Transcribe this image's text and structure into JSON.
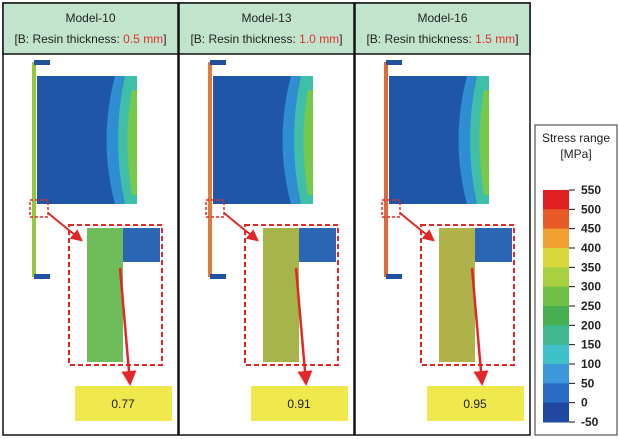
{
  "panels": [
    {
      "title": "Model-10",
      "prefix": "[B: Resin thickness: ",
      "thickness": "0.5 mm",
      "suffix": "]",
      "ratio": "0.77"
    },
    {
      "title": "Model-13",
      "prefix": "[B: Resin thickness: ",
      "thickness": "1.0 mm",
      "suffix": "]",
      "ratio": "0.91"
    },
    {
      "title": "Model-16",
      "prefix": "[B: Resin thickness: ",
      "thickness": "1.5 mm",
      "suffix": "]",
      "ratio": "0.95"
    }
  ],
  "colorbar": {
    "title": "Stress range",
    "unit": "[MPa]",
    "labels": [
      "550",
      "500",
      "450",
      "400",
      "350",
      "300",
      "250",
      "200",
      "150",
      "100",
      "50",
      "0",
      "-50"
    ]
  }
}
